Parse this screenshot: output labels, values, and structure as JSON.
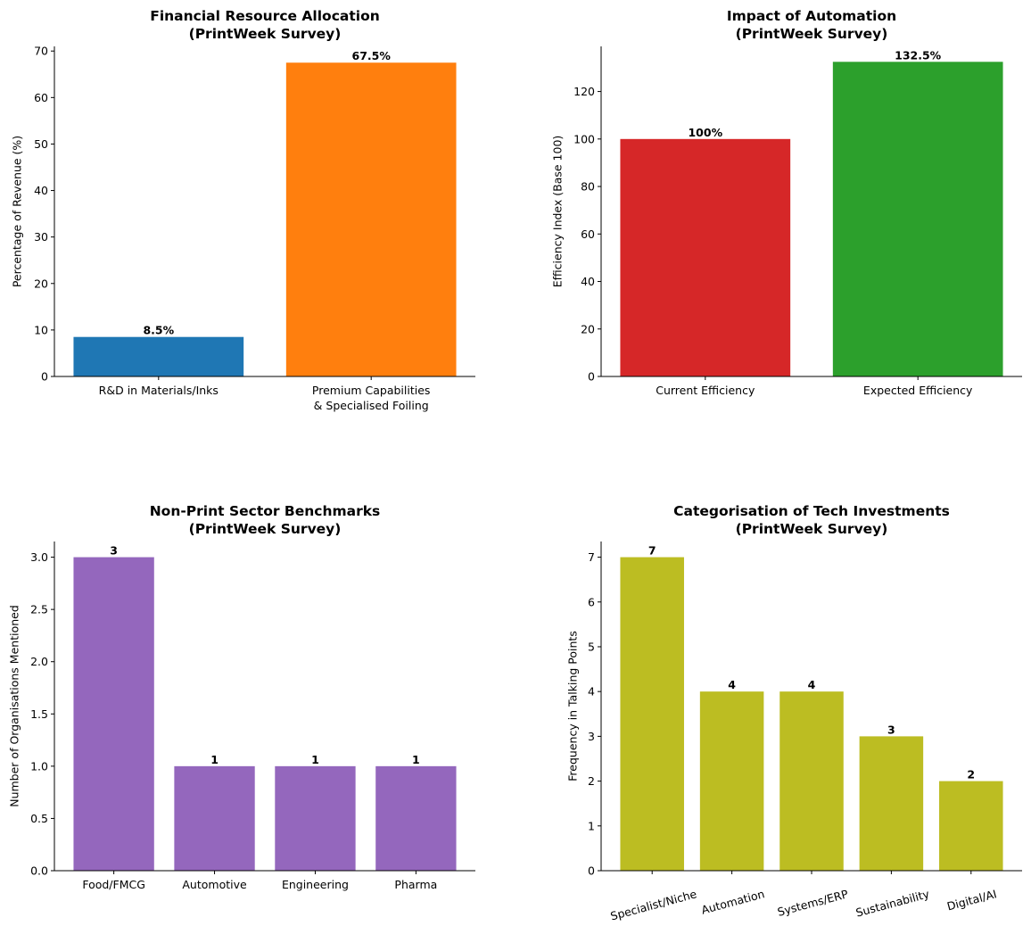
{
  "chart_data": [
    {
      "type": "bar",
      "title": "Financial Resource Allocation\n(PrintWeek Survey)",
      "xlabel": "",
      "ylabel": "Percentage of Revenue (%)",
      "categories": [
        "R&D in Materials/Inks",
        "Premium Capabilities\n& Specialised Foiling"
      ],
      "values": [
        8.5,
        67.5
      ],
      "value_labels": [
        "8.5%",
        "67.5%"
      ],
      "colors": [
        "#1f77b4",
        "#ff7f0e"
      ],
      "ylim": [
        0,
        71
      ],
      "yticks": [
        0,
        10,
        20,
        30,
        40,
        50,
        60,
        70
      ],
      "ytick_labels": [
        "0",
        "10",
        "20",
        "30",
        "40",
        "50",
        "60",
        "70"
      ],
      "xtick_rotation": 0,
      "grid": false
    },
    {
      "type": "bar",
      "title": "Impact of Automation\n(PrintWeek Survey)",
      "xlabel": "",
      "ylabel": "Efficiency Index (Base 100)",
      "categories": [
        "Current Efficiency",
        "Expected Efficiency"
      ],
      "values": [
        100,
        132.5
      ],
      "value_labels": [
        "100%",
        "132.5%"
      ],
      "colors": [
        "#d62728",
        "#2ca02c"
      ],
      "ylim": [
        0,
        139
      ],
      "yticks": [
        0,
        20,
        40,
        60,
        80,
        100,
        120
      ],
      "ytick_labels": [
        "0",
        "20",
        "40",
        "60",
        "80",
        "100",
        "120"
      ],
      "xtick_rotation": 0,
      "grid": false
    },
    {
      "type": "bar",
      "title": "Non-Print Sector Benchmarks\n(PrintWeek Survey)",
      "xlabel": "",
      "ylabel": "Number of Organisations Mentioned",
      "categories": [
        "Food/FMCG",
        "Automotive",
        "Engineering",
        "Pharma"
      ],
      "values": [
        3,
        1,
        1,
        1
      ],
      "value_labels": [
        "3",
        "1",
        "1",
        "1"
      ],
      "colors": [
        "#9467bd",
        "#9467bd",
        "#9467bd",
        "#9467bd"
      ],
      "ylim": [
        0,
        3.15
      ],
      "yticks": [
        0,
        0.5,
        1.0,
        1.5,
        2.0,
        2.5,
        3.0
      ],
      "ytick_labels": [
        "0.0",
        "0.5",
        "1.0",
        "1.5",
        "2.0",
        "2.5",
        "3.0"
      ],
      "xtick_rotation": 0,
      "grid": false
    },
    {
      "type": "bar",
      "title": "Categorisation of Tech Investments\n(PrintWeek Survey)",
      "xlabel": "",
      "ylabel": "Frequency in Talking Points",
      "categories": [
        "Specialist/Niche",
        "Automation",
        "Systems/ERP",
        "Sustainability",
        "Digital/AI"
      ],
      "values": [
        7,
        4,
        4,
        3,
        2
      ],
      "value_labels": [
        "7",
        "4",
        "4",
        "3",
        "2"
      ],
      "colors": [
        "#bcbd22",
        "#bcbd22",
        "#bcbd22",
        "#bcbd22",
        "#bcbd22"
      ],
      "ylim": [
        0,
        7.35
      ],
      "yticks": [
        0,
        1,
        2,
        3,
        4,
        5,
        6,
        7
      ],
      "ytick_labels": [
        "0",
        "1",
        "2",
        "3",
        "4",
        "5",
        "6",
        "7"
      ],
      "xtick_rotation": -15,
      "grid": false
    }
  ]
}
